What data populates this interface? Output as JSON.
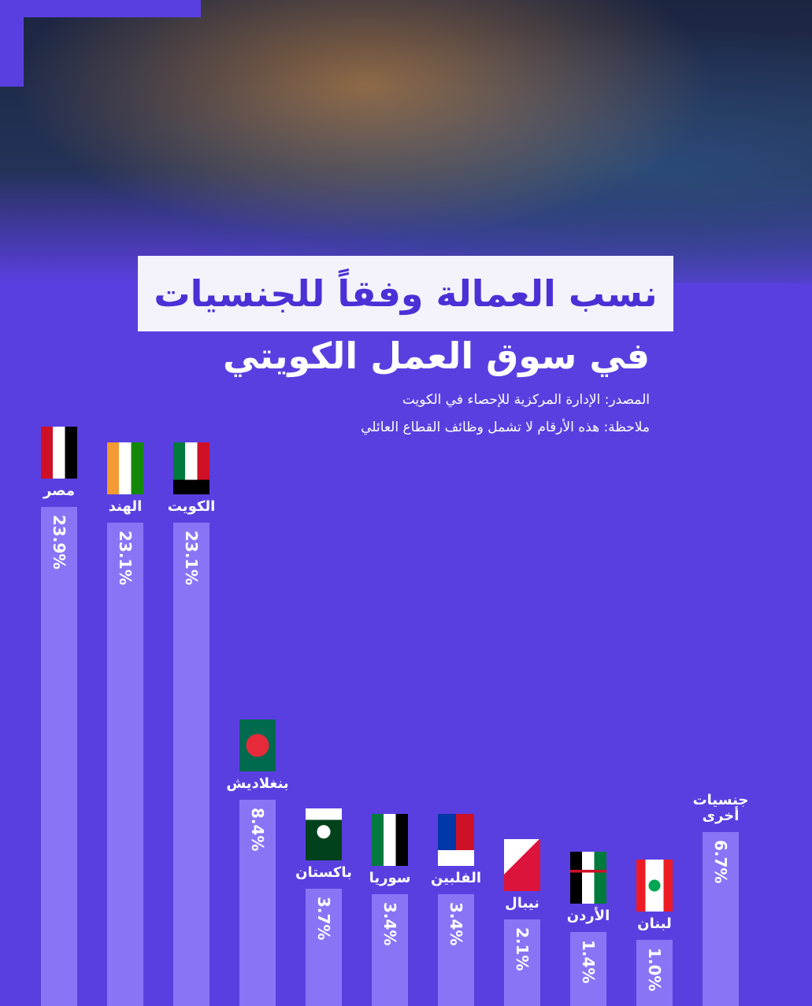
{
  "chart_data": {
    "type": "bar",
    "title": "نسب العمالة وفقاً للجنسيات",
    "subtitle": "في سوق العمل الكويتي",
    "source": "المصدر: الإدارة المركزية للإحصاء في الكويت",
    "note": "ملاحظة: هذه الأرقام لا تشمل وظائف القطاع العائلي",
    "categories": [
      "مصر",
      "الهند",
      "الكويت",
      "بنغلاديش",
      "باكستان",
      "سوريا",
      "الفلبين",
      "نيبال",
      "الأردن",
      "لبنان",
      "جنسيات أخرى"
    ],
    "values": [
      23.9,
      23.1,
      23.1,
      8.4,
      3.7,
      3.4,
      3.4,
      2.1,
      1.4,
      1.0,
      6.7
    ],
    "value_labels": [
      "23.9%",
      "23.1%",
      "23.1%",
      "8.4%",
      "3.7%",
      "3.4%",
      "3.4%",
      "2.1%",
      "1.4%",
      "1.0%",
      "6.7%"
    ],
    "color": "#8a74f6"
  }
}
